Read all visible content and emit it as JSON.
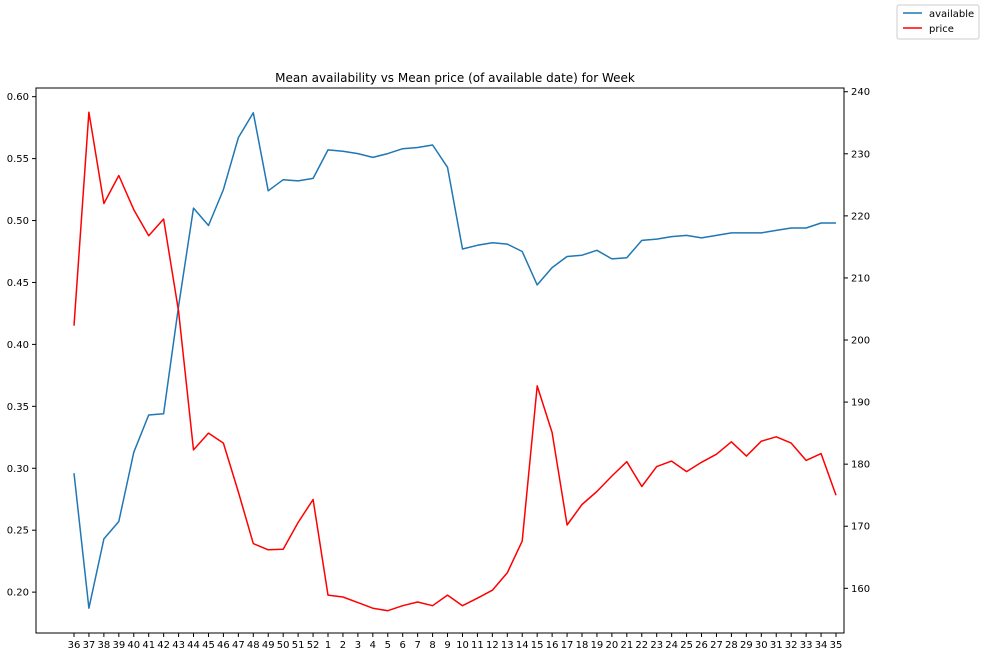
{
  "chart_data": {
    "type": "line",
    "title": "Mean availability vs Mean price (of available date) for Week",
    "categories": [
      "36",
      "37",
      "38",
      "39",
      "40",
      "41",
      "42",
      "43",
      "44",
      "45",
      "46",
      "47",
      "48",
      "49",
      "50",
      "51",
      "52",
      "1",
      "2",
      "3",
      "4",
      "5",
      "6",
      "7",
      "8",
      "9",
      "10",
      "11",
      "12",
      "13",
      "14",
      "15",
      "16",
      "17",
      "18",
      "19",
      "20",
      "21",
      "22",
      "23",
      "24",
      "25",
      "26",
      "27",
      "28",
      "29",
      "30",
      "31",
      "32",
      "33",
      "34",
      "35"
    ],
    "series": [
      {
        "name": "available",
        "axis": "left",
        "color": "#1f77b4",
        "values": [
          0.296,
          0.187,
          0.243,
          0.257,
          0.313,
          0.343,
          0.344,
          0.431,
          0.51,
          0.496,
          0.525,
          0.567,
          0.587,
          0.524,
          0.533,
          0.532,
          0.534,
          0.557,
          0.556,
          0.554,
          0.551,
          0.554,
          0.558,
          0.559,
          0.561,
          0.543,
          0.477,
          0.48,
          0.482,
          0.481,
          0.475,
          0.448,
          0.462,
          0.471,
          0.472,
          0.476,
          0.469,
          0.47,
          0.484,
          0.485,
          0.487,
          0.488,
          0.486,
          0.488,
          0.49,
          0.49,
          0.49,
          0.492,
          0.494,
          0.494,
          0.498,
          0.498
        ]
      },
      {
        "name": "price",
        "axis": "right",
        "color": "#ff0000",
        "values": [
          202.3,
          236.7,
          222.0,
          226.5,
          221.0,
          216.8,
          219.5,
          204.6,
          182.3,
          185.0,
          183.4,
          175.5,
          167.2,
          166.2,
          166.3,
          170.6,
          174.3,
          158.9,
          158.6,
          157.7,
          156.8,
          156.4,
          157.2,
          157.8,
          157.2,
          158.9,
          157.2,
          158.4,
          159.7,
          162.5,
          167.6,
          192.6,
          185.1,
          170.2,
          173.5,
          175.6,
          178.1,
          180.4,
          176.4,
          179.6,
          180.5,
          178.8,
          180.3,
          181.6,
          183.6,
          181.3,
          183.7,
          184.4,
          183.4,
          180.6,
          181.7,
          175.0
        ]
      }
    ],
    "ylim": [
      0.167,
      0.607
    ],
    "yticks": [
      "0.60",
      "0.55",
      "0.50",
      "0.45",
      "0.40",
      "0.35",
      "0.30",
      "0.25",
      "0.20"
    ],
    "yticks_values": [
      0.6,
      0.55,
      0.5,
      0.45,
      0.4,
      0.35,
      0.3,
      0.25,
      0.2
    ],
    "y2lim": [
      152.8,
      240.6
    ],
    "y2ticks": [
      "240",
      "230",
      "220",
      "210",
      "200",
      "190",
      "180",
      "170",
      "160"
    ],
    "y2ticks_values": [
      240,
      230,
      220,
      210,
      200,
      190,
      180,
      170,
      160
    ],
    "grid": false,
    "legend": {
      "placement": "top-right",
      "entries": [
        {
          "label": "available",
          "color": "#1f77b4"
        },
        {
          "label": "price",
          "color": "#ff0000"
        }
      ]
    }
  }
}
